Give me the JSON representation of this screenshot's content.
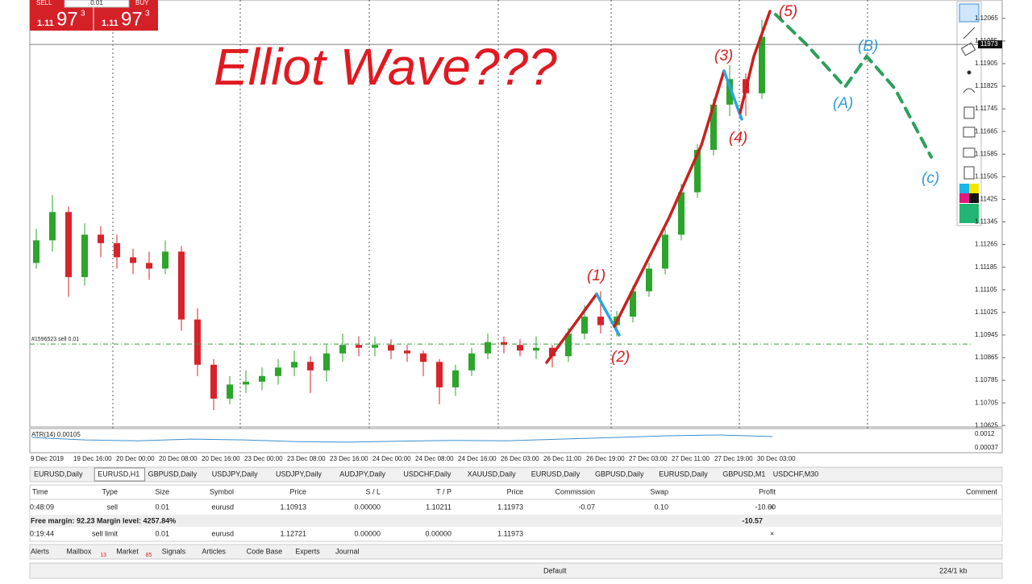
{
  "widget": {
    "sell_label": "SELL",
    "buy_label": "BUY",
    "lot": "0.01",
    "sell": {
      "big": "1.11",
      "pips": "97",
      "point": "3"
    },
    "buy": {
      "big": "1.11",
      "pips": "97",
      "point": "3"
    }
  },
  "chart": {
    "title": "Elliot Wave???",
    "wave_labels": [
      "(1)",
      "(2)",
      "(3)",
      "(4)",
      "(5)",
      "(A)",
      "(B)",
      "(c)"
    ],
    "ylim": [
      1.1062,
      1.1213
    ],
    "yticks": [
      1.12065,
      1.11985,
      1.11905,
      1.11825,
      1.11745,
      1.11665,
      1.11585,
      1.11505,
      1.11425,
      1.11345,
      1.11265,
      1.11185,
      1.11105,
      1.11025,
      1.10945,
      1.10865,
      1.10785,
      1.10705,
      1.10625
    ],
    "current_price": {
      "value": 1.11973,
      "label": "11973"
    },
    "order_line": {
      "label": "#1596523 sell 0.01",
      "price": 1.10913
    },
    "time_labels": [
      "9 Dec 2019",
      "19 Dec 16:00",
      "20 Dec 00:00",
      "20 Dec 08:00",
      "20 Dec 16:00",
      "23 Dec 00:00",
      "23 Dec 08:00",
      "23 Dec 16:00",
      "24 Dec 00:00",
      "24 Dec 08:00",
      "24 Dec 16:00",
      "26 Dec 03:00",
      "26 Dec 11:00",
      "26 Dec 19:00",
      "27 Dec 03:00",
      "27 Dec 11:00",
      "27 Dec 19:00",
      "30 Dec 03:00"
    ],
    "candles": [
      [
        1.112,
        1.1132,
        1.1118,
        1.1128
      ],
      [
        1.1128,
        1.1144,
        1.1124,
        1.1138
      ],
      [
        1.1138,
        1.114,
        1.1108,
        1.1115
      ],
      [
        1.1115,
        1.1134,
        1.1112,
        1.113
      ],
      [
        1.113,
        1.1133,
        1.1122,
        1.1127
      ],
      [
        1.1127,
        1.113,
        1.1118,
        1.1122
      ],
      [
        1.1122,
        1.1125,
        1.1116,
        1.112
      ],
      [
        1.112,
        1.1124,
        1.1114,
        1.1118
      ],
      [
        1.1118,
        1.1128,
        1.1116,
        1.1124
      ],
      [
        1.1124,
        1.1126,
        1.1096,
        1.11
      ],
      [
        1.11,
        1.1104,
        1.108,
        1.1084
      ],
      [
        1.1084,
        1.1086,
        1.1068,
        1.1072
      ],
      [
        1.1072,
        1.108,
        1.107,
        1.1077
      ],
      [
        1.1077,
        1.1082,
        1.1074,
        1.1078
      ],
      [
        1.1078,
        1.1083,
        1.1075,
        1.108
      ],
      [
        1.108,
        1.1086,
        1.1077,
        1.1083
      ],
      [
        1.1083,
        1.1089,
        1.108,
        1.1085
      ],
      [
        1.1085,
        1.1087,
        1.1074,
        1.1082
      ],
      [
        1.1082,
        1.1091,
        1.1078,
        1.1088
      ],
      [
        1.1088,
        1.1095,
        1.1085,
        1.1091
      ],
      [
        1.1091,
        1.1094,
        1.1087,
        1.109
      ],
      [
        1.109,
        1.1094,
        1.1087,
        1.1091
      ],
      [
        1.1091,
        1.1093,
        1.1086,
        1.1089
      ],
      [
        1.1089,
        1.1091,
        1.1085,
        1.1088
      ],
      [
        1.1088,
        1.1089,
        1.108,
        1.1085
      ],
      [
        1.1085,
        1.1086,
        1.107,
        1.1076
      ],
      [
        1.1076,
        1.1084,
        1.1073,
        1.1082
      ],
      [
        1.1082,
        1.109,
        1.108,
        1.1088
      ],
      [
        1.1088,
        1.1095,
        1.1086,
        1.1092
      ],
      [
        1.1092,
        1.1094,
        1.1088,
        1.1091
      ],
      [
        1.1091,
        1.1093,
        1.1087,
        1.1089
      ],
      [
        1.1089,
        1.1094,
        1.1086,
        1.109
      ],
      [
        1.109,
        1.1091,
        1.1083,
        1.1087
      ],
      [
        1.1087,
        1.1097,
        1.1085,
        1.1095
      ],
      [
        1.1095,
        1.1105,
        1.1093,
        1.1101
      ],
      [
        1.1101,
        1.111,
        1.1095,
        1.1098
      ],
      [
        1.1098,
        1.1103,
        1.1094,
        1.1101
      ],
      [
        1.1101,
        1.1112,
        1.1099,
        1.111
      ],
      [
        1.111,
        1.112,
        1.1108,
        1.1118
      ],
      [
        1.1118,
        1.1132,
        1.1116,
        1.113
      ],
      [
        1.113,
        1.1148,
        1.1128,
        1.1145
      ],
      [
        1.1145,
        1.1162,
        1.1143,
        1.116
      ],
      [
        1.116,
        1.1178,
        1.1158,
        1.1176
      ],
      [
        1.1176,
        1.119,
        1.1172,
        1.1185
      ],
      [
        1.1185,
        1.1187,
        1.1172,
        1.118
      ],
      [
        1.118,
        1.1206,
        1.1178,
        1.12
      ]
    ],
    "atr": {
      "label": "ATR(14) 0.00105",
      "ylim": [
        0.00013,
        0.00149
      ],
      "yticks": [
        0.0012,
        0.00037
      ],
      "values": [
        0.001,
        0.00085,
        0.0008,
        0.0009,
        0.00085,
        0.00075,
        0.00072,
        0.00078,
        0.00082,
        0.0008,
        0.0009,
        0.001,
        0.0011,
        0.00115,
        0.00105
      ]
    }
  },
  "tabs": [
    "EURUSD,Daily",
    "EURUSD,H1",
    "GBPUSD,Daily",
    "USDJPY,Daily",
    "USDJPY,Daily",
    "AUDJPY,Daily",
    "USDCHF,Daily",
    "XAUUSD,Daily",
    "EURUSD,Daily",
    "GBPUSD,Daily",
    "EURUSD,Daily",
    "GBPUSD,M1",
    "USDCHF,M30"
  ],
  "table": {
    "header": [
      "Time",
      "Type",
      "Size",
      "Symbol",
      "Price",
      "S / L",
      "T / P",
      "Price",
      "Commission",
      "Swap",
      "Profit",
      "Comment"
    ],
    "rows": [
      [
        "0:48:09",
        "sell",
        "0.01",
        "eurusd",
        "1.10913",
        "0.00000",
        "1.10211",
        "1.11973",
        "-0.07",
        "0.10",
        "-10.60"
      ]
    ],
    "summary": {
      "text": "Free margin: 92.23  Margin level: 4257.84%",
      "profit": "-10.57"
    },
    "pending": [
      [
        "0:19:44",
        "sell limit",
        "0.01",
        "eurusd",
        "1.12721",
        "0.00000",
        "0.00000",
        "1.11973"
      ]
    ]
  },
  "bottom_tabs": [
    {
      "label": "Alerts"
    },
    {
      "label": "Mailbox",
      "badge": "13"
    },
    {
      "label": "Market",
      "badge": "85"
    },
    {
      "label": "Signals"
    },
    {
      "label": "Articles"
    },
    {
      "label": "Code Base"
    },
    {
      "label": "Experts"
    },
    {
      "label": "Journal"
    }
  ],
  "status": {
    "profile": "Default",
    "traffic": "224/1 kb"
  }
}
